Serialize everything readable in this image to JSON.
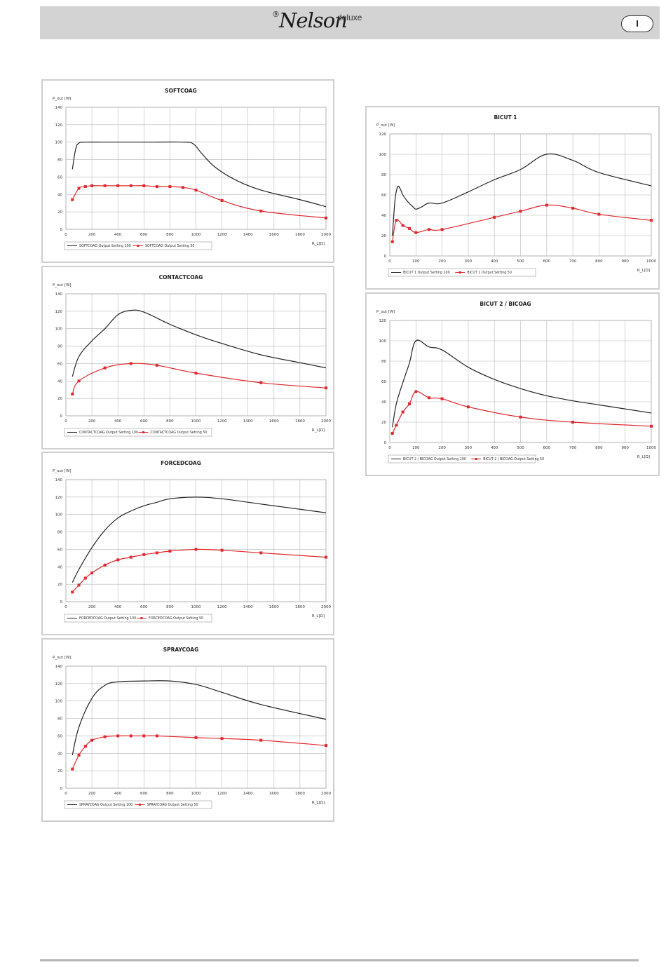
{
  "header": {
    "registered_mark": "®",
    "brand": "Nelson",
    "brand_suffix": "deluxe",
    "language_badge": "I"
  },
  "colors": {
    "header_bg": "#d3d3d3",
    "series_100": "#222222",
    "series_50": "#e0282e"
  },
  "chart_data": [
    {
      "id": "softcoag",
      "type": "line",
      "title": "SOFTCOAG",
      "ylabel": "P_out [W]",
      "xlabel": "R_L[Ω]",
      "xlim": [
        0,
        2000
      ],
      "ylim": [
        0,
        140
      ],
      "xticks": [
        0,
        200,
        400,
        600,
        800,
        1000,
        1200,
        1400,
        1600,
        1800,
        2000
      ],
      "yticks": [
        0,
        20,
        40,
        60,
        80,
        100,
        120,
        140
      ],
      "series": [
        {
          "name": "SOFTCOAG Output Setting 100",
          "color": "#222222",
          "markers": false,
          "x": [
            50,
            75,
            100,
            150,
            300,
            600,
            900,
            980,
            1050,
            1150,
            1300,
            1500,
            1800,
            2000
          ],
          "y": [
            69,
            92,
            99,
            100,
            100,
            100,
            100,
            98,
            86,
            71,
            57,
            45,
            34,
            26
          ]
        },
        {
          "name": "SOFTCOAG Output Setting 50",
          "color": "#e0282e",
          "markers": true,
          "x": [
            50,
            100,
            150,
            200,
            300,
            400,
            500,
            600,
            700,
            800,
            900,
            1000,
            1200,
            1500,
            2000
          ],
          "y": [
            34,
            47,
            49,
            50,
            50,
            50,
            50,
            50,
            49,
            49,
            48,
            45,
            33,
            21,
            13
          ]
        }
      ]
    },
    {
      "id": "contactcoag",
      "type": "line",
      "title": "CONTACTCOAG",
      "ylabel": "P_out [W]",
      "xlabel": "R_L[Ω]",
      "xlim": [
        0,
        2000
      ],
      "ylim": [
        0,
        140
      ],
      "xticks": [
        0,
        200,
        400,
        600,
        800,
        1000,
        1200,
        1400,
        1600,
        1800,
        2000
      ],
      "yticks": [
        0,
        20,
        40,
        60,
        80,
        100,
        120,
        140
      ],
      "series": [
        {
          "name": "CONTACTCOAG Output Setting 100",
          "color": "#222222",
          "markers": false,
          "x": [
            50,
            100,
            200,
            300,
            400,
            500,
            600,
            800,
            1000,
            1200,
            1500,
            1800,
            2000
          ],
          "y": [
            45,
            68,
            86,
            100,
            116,
            121,
            119,
            105,
            93,
            83,
            70,
            61,
            55
          ]
        },
        {
          "name": "CONTACTCOAG Output Setting 50",
          "color": "#e0282e",
          "markers": true,
          "x": [
            50,
            100,
            300,
            500,
            700,
            1000,
            1500,
            2000
          ],
          "y": [
            25,
            40,
            55,
            60,
            58,
            49,
            38,
            32
          ]
        }
      ]
    },
    {
      "id": "forcedcoag",
      "type": "line",
      "title": "FORCEDCOAG",
      "ylabel": "P_out [W]",
      "xlabel": "R_L[Ω]",
      "xlim": [
        0,
        2000
      ],
      "ylim": [
        0,
        140
      ],
      "xticks": [
        0,
        200,
        400,
        600,
        800,
        1000,
        1200,
        1400,
        1600,
        1800,
        2000
      ],
      "yticks": [
        0,
        20,
        40,
        60,
        80,
        100,
        120,
        140
      ],
      "series": [
        {
          "name": "FORCEDCOAG Output Setting 100",
          "color": "#222222",
          "markers": false,
          "x": [
            50,
            100,
            200,
            300,
            400,
            500,
            600,
            700,
            800,
            1000,
            1200,
            1500,
            2000
          ],
          "y": [
            22,
            37,
            62,
            82,
            96,
            104,
            110,
            114,
            118,
            120,
            118,
            112,
            102
          ]
        },
        {
          "name": "FORCEDCOAG Output Setting 50",
          "color": "#e0282e",
          "markers": true,
          "x": [
            50,
            100,
            150,
            200,
            300,
            400,
            500,
            600,
            700,
            800,
            1000,
            1200,
            1500,
            2000
          ],
          "y": [
            11,
            19,
            27,
            33,
            42,
            48,
            51,
            54,
            56,
            58,
            60,
            59,
            56,
            51
          ]
        }
      ]
    },
    {
      "id": "spraycoag",
      "type": "line",
      "title": "SPRAYCOAG",
      "ylabel": "P_out [W]",
      "xlabel": "R_L[Ω]",
      "xlim": [
        0,
        2000
      ],
      "ylim": [
        0,
        140
      ],
      "xticks": [
        0,
        200,
        400,
        600,
        800,
        1000,
        1200,
        1400,
        1600,
        1800,
        2000
      ],
      "yticks": [
        0,
        20,
        40,
        60,
        80,
        100,
        120,
        140
      ],
      "series": [
        {
          "name": "SPRAYCOAG Output Setting 100",
          "color": "#222222",
          "markers": false,
          "x": [
            50,
            100,
            200,
            300,
            400,
            600,
            800,
            1000,
            1200,
            1500,
            2000
          ],
          "y": [
            38,
            70,
            103,
            118,
            122,
            123,
            123,
            119,
            110,
            96,
            79
          ]
        },
        {
          "name": "SPRAYCOAG Output Setting 50",
          "color": "#e0282e",
          "markers": true,
          "x": [
            50,
            100,
            150,
            200,
            300,
            400,
            500,
            600,
            700,
            1000,
            1200,
            1500,
            2000
          ],
          "y": [
            22,
            38,
            48,
            55,
            59,
            60,
            60,
            60,
            60,
            58,
            57,
            55,
            49
          ]
        }
      ]
    },
    {
      "id": "bicut1",
      "type": "line",
      "title": "BICUT 1",
      "ylabel": "P_out [W]",
      "xlabel": "R_L[Ω]",
      "xlim": [
        0,
        1000
      ],
      "ylim": [
        0,
        120
      ],
      "xticks": [
        0,
        100,
        200,
        300,
        400,
        500,
        600,
        700,
        800,
        900,
        1000
      ],
      "yticks": [
        0,
        20,
        40,
        60,
        80,
        100,
        120
      ],
      "series": [
        {
          "name": "BICUT 1 Output Setting 100",
          "color": "#222222",
          "markers": false,
          "x": [
            10,
            20,
            30,
            40,
            50,
            70,
            90,
            100,
            120,
            150,
            200,
            300,
            400,
            500,
            600,
            700,
            800,
            1000
          ],
          "y": [
            20,
            55,
            68,
            66,
            60,
            53,
            48,
            46,
            48,
            52,
            52,
            63,
            75,
            85,
            100,
            94,
            82,
            69
          ]
        },
        {
          "name": "BICUT 1 Output Setting 50",
          "color": "#e0282e",
          "markers": true,
          "x": [
            10,
            25,
            50,
            75,
            100,
            150,
            200,
            400,
            500,
            600,
            700,
            800,
            1000
          ],
          "y": [
            14,
            35,
            30,
            27,
            23,
            26,
            26,
            38,
            44,
            50,
            47,
            41,
            35
          ]
        }
      ]
    },
    {
      "id": "bicut2",
      "type": "line",
      "title": "BICUT 2 / BICOAG",
      "ylabel": "P_out [W]",
      "xlabel": "R_L[Ω]",
      "xlim": [
        0,
        1000
      ],
      "ylim": [
        0,
        120
      ],
      "xticks": [
        0,
        100,
        200,
        300,
        400,
        500,
        600,
        700,
        800,
        900,
        1000
      ],
      "yticks": [
        0,
        20,
        40,
        60,
        80,
        100,
        120
      ],
      "series": [
        {
          "name": "BICUT 2 / BICOAG Output Setting 100",
          "color": "#222222",
          "markers": false,
          "x": [
            10,
            25,
            50,
            75,
            100,
            150,
            200,
            300,
            400,
            500,
            600,
            700,
            800,
            1000
          ],
          "y": [
            15,
            38,
            59,
            78,
            100,
            94,
            91,
            74,
            62,
            53,
            46,
            41,
            37,
            29
          ]
        },
        {
          "name": "BICUT 2 / BICOAG Output Setting 50",
          "color": "#e0282e",
          "markers": true,
          "x": [
            10,
            25,
            50,
            75,
            100,
            150,
            200,
            300,
            500,
            700,
            1000
          ],
          "y": [
            9,
            17,
            30,
            38,
            50,
            44,
            43,
            35,
            25,
            20,
            16
          ]
        }
      ]
    }
  ]
}
